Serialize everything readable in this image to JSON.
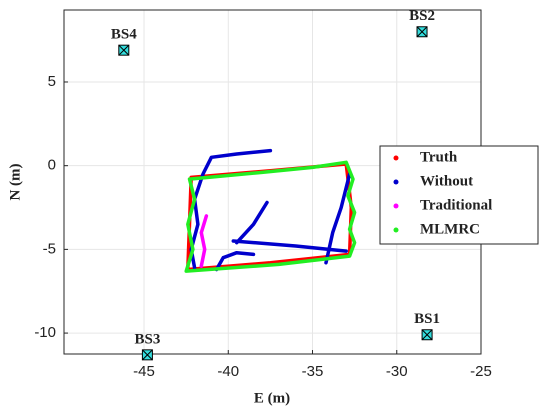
{
  "chart_data": {
    "type": "line",
    "xlabel": "E (m)",
    "ylabel": "N (m)",
    "xlim": [
      -49.75,
      -25
    ],
    "ylim": [
      -11.25,
      9.3
    ],
    "xticks": [
      -45,
      -40,
      -35,
      -30,
      -25
    ],
    "yticks": [
      -10,
      -5,
      0,
      5
    ],
    "grid": true,
    "legend": "east",
    "series": [
      {
        "name": "Truth",
        "color": "#ff0000",
        "x": [
          -42.2,
          -37.5,
          -33,
          -32.7,
          -32.8,
          -37.5,
          -42.4,
          -42.3,
          -42.2
        ],
        "y": [
          -0.7,
          -0.3,
          0.1,
          -2.5,
          -5.3,
          -5.8,
          -6.2,
          -3.5,
          -0.7
        ]
      },
      {
        "name": "Without",
        "color": "#0000cc",
        "x": [
          -37.5,
          -39.5,
          -41,
          -41.5,
          -42,
          -41.8,
          -42.2,
          -42,
          null,
          -37.7,
          -38.5,
          -39.5,
          null,
          -39.7,
          -36,
          -33,
          null,
          -40.7,
          -40.3,
          -39.5,
          -38.5,
          null,
          -34.2,
          -33.8,
          -33.3,
          -32.8
        ],
        "y": [
          0.9,
          0.7,
          0.5,
          -0.5,
          -2,
          -3.5,
          -5,
          -6.1,
          null,
          -2.2,
          -3.5,
          -4.6,
          null,
          -4.5,
          -4.8,
          -5.1,
          null,
          -6.2,
          -5.5,
          -5.2,
          -5.3,
          null,
          -5.8,
          -4,
          -2.5,
          -0.5
        ]
      },
      {
        "name": "Traditional",
        "color": "#ff00ff",
        "x": [
          -41.3,
          -41.6,
          -41.4,
          -41.6
        ],
        "y": [
          -3.0,
          -4.0,
          -5.0,
          -6.0
        ]
      },
      {
        "name": "MLMRC",
        "color": "#22ee22",
        "x": [
          -42.3,
          -38,
          -35,
          -33.0,
          -32.6,
          -32.9,
          -32.5,
          -32.8,
          -32.5,
          -32.8,
          -37,
          -42.5,
          -42.1,
          -42.4,
          -42.0,
          -42.3
        ],
        "y": [
          -0.8,
          -0.4,
          -0.1,
          0.2,
          -0.8,
          -1.8,
          -2.8,
          -3.8,
          -4.6,
          -5.4,
          -5.9,
          -6.3,
          -5,
          -3.5,
          -2,
          -0.8
        ]
      }
    ],
    "stations": {
      "names": [
        "BS1",
        "BS2",
        "BS3",
        "BS4"
      ],
      "x": [
        -28.2,
        -28.5,
        -44.8,
        -46.2
      ],
      "y": [
        -10.1,
        8.0,
        -11.3,
        6.9
      ],
      "color": "#33dddd"
    }
  }
}
